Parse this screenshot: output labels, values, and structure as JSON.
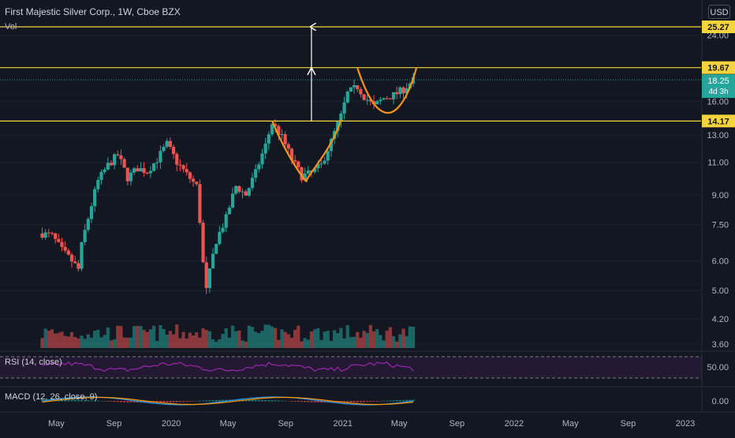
{
  "header": {
    "title": "First Majestic Silver Corp., 1W, Cboe BZX",
    "vol_label": "Vol",
    "currency": "USD"
  },
  "levels": {
    "level_1": "25.27",
    "level_2": "19.67",
    "last_price": "18.25",
    "countdown": "4d 3h",
    "level_3": "14.17"
  },
  "indicators": {
    "rsi_title": "RSI (14, close)",
    "rsi_tick": "50.00",
    "macd_title": "MACD (12, 26, close, 9)",
    "macd_tick": "0.00"
  },
  "colors": {
    "up": "#26a69a",
    "down": "#ef5350",
    "level_line": "#f5d33b",
    "pattern": "#f7931a",
    "rsi": "#9c27b0",
    "macd": "#2196f3",
    "signal": "#ff9800",
    "last_price_tag": "#26a69a"
  },
  "chart_data": {
    "type": "candlestick",
    "title": "First Majestic Silver Corp., 1W, Cboe BZX",
    "y_scale": "log",
    "price_ticks": [
      "24.00",
      "16.00",
      "13.00",
      "11.00",
      "9.00",
      "7.50",
      "6.00",
      "5.00",
      "4.20",
      "3.60"
    ],
    "x_ticks": [
      "May",
      "Sep",
      "2020",
      "May",
      "Sep",
      "2021",
      "May",
      "Sep",
      "2022",
      "May",
      "Sep",
      "2023"
    ],
    "horizontal_levels": [
      25.27,
      19.67,
      14.17
    ],
    "last_price": 18.25,
    "path_points": [
      [
        "2019-04-01",
        7.1
      ],
      [
        "2019-04-22",
        7.0
      ],
      [
        "2019-05-13",
        6.4
      ],
      [
        "2019-06-03",
        6.0
      ],
      [
        "2019-06-17",
        5.7
      ],
      [
        "2019-06-24",
        6.6
      ],
      [
        "2019-07-08",
        7.8
      ],
      [
        "2019-07-29",
        9.8
      ],
      [
        "2019-08-19",
        10.8
      ],
      [
        "2019-09-09",
        11.5
      ],
      [
        "2019-09-30",
        10.0
      ],
      [
        "2019-10-21",
        10.6
      ],
      [
        "2019-11-11",
        10.4
      ],
      [
        "2019-12-02",
        11.2
      ],
      [
        "2019-12-23",
        12.3
      ],
      [
        "2020-01-13",
        11.0
      ],
      [
        "2020-02-03",
        10.2
      ],
      [
        "2020-02-24",
        9.5
      ],
      [
        "2020-03-09",
        5.9
      ],
      [
        "2020-03-16",
        5.0
      ],
      [
        "2020-04-06",
        6.8
      ],
      [
        "2020-04-27",
        7.8
      ],
      [
        "2020-05-18",
        9.5
      ],
      [
        "2020-06-08",
        9.0
      ],
      [
        "2020-06-29",
        10.3
      ],
      [
        "2020-07-20",
        12.2
      ],
      [
        "2020-08-03",
        14.0
      ],
      [
        "2020-08-24",
        12.8
      ],
      [
        "2020-09-14",
        11.2
      ],
      [
        "2020-10-05",
        10.1
      ],
      [
        "2020-10-26",
        10.3
      ],
      [
        "2020-11-16",
        10.8
      ],
      [
        "2020-12-07",
        12.5
      ],
      [
        "2020-12-28",
        14.6
      ],
      [
        "2021-01-11",
        16.8
      ],
      [
        "2021-02-01",
        17.5
      ],
      [
        "2021-02-15",
        16.5
      ],
      [
        "2021-03-08",
        15.5
      ],
      [
        "2021-03-29",
        16.3
      ],
      [
        "2021-04-19",
        16.6
      ],
      [
        "2021-05-10",
        17.2
      ],
      [
        "2021-06-01",
        18.25
      ]
    ],
    "annotations": [
      {
        "type": "cup",
        "label": "",
        "from": "2020-08-03",
        "to": "2020-12-28"
      },
      {
        "type": "cup",
        "label": "",
        "from": "2021-02-01",
        "to": "2021-06-07"
      },
      {
        "type": "measured-move-arrow",
        "from": 14.17,
        "to": 25.27
      }
    ],
    "rsi": {
      "level": 50
    },
    "macd": {
      "zero": 0
    }
  }
}
